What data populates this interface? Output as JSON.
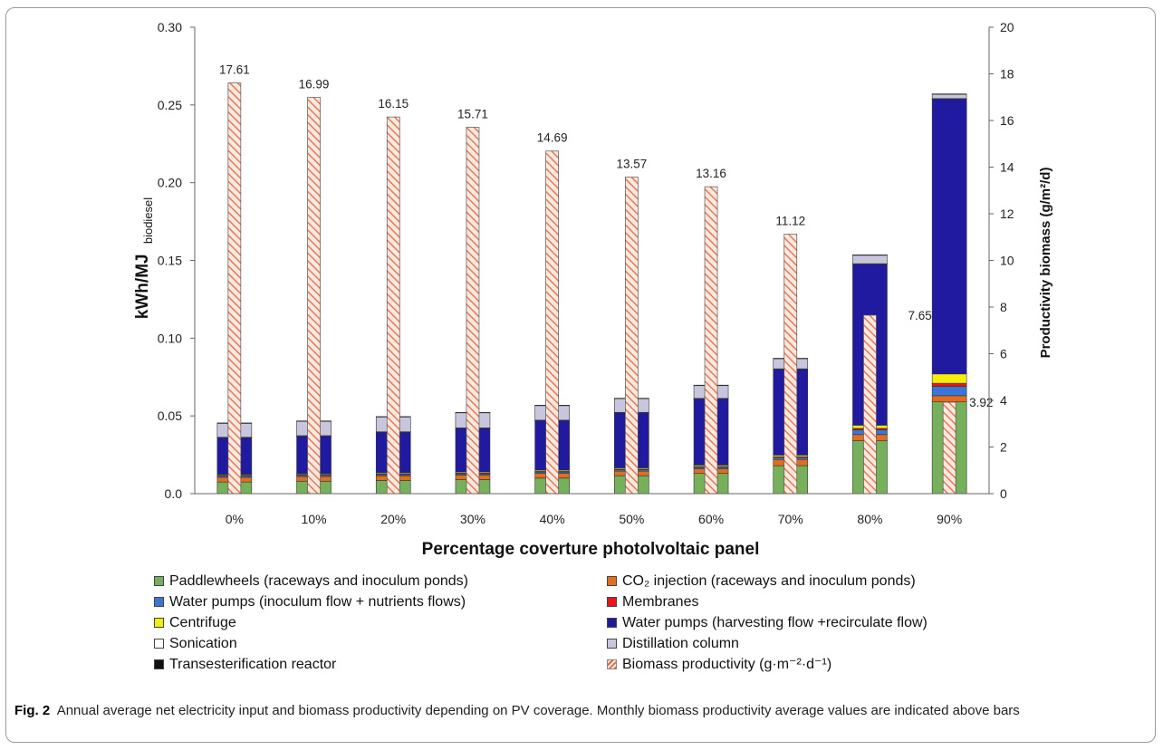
{
  "chart_data": {
    "type": "bar",
    "categories": [
      "0%",
      "10%",
      "20%",
      "30%",
      "40%",
      "50%",
      "60%",
      "70%",
      "80%",
      "90%"
    ],
    "stack_order": [
      "Paddlewheels (raceways and inoculum ponds)",
      "CO₂ injection (raceways and inoculum ponds)",
      "Water pumps (inoculum flow + nutrients flows)",
      "Membranes",
      "Centrifuge",
      "Water pumps (harvesting flow +recirculate flow)",
      "Sonication",
      "Distillation column",
      "Transesterification reactor"
    ],
    "series": [
      {
        "name": "Paddlewheels (raceways and inoculum ponds)",
        "color": "#77b05a",
        "axis": "left",
        "values": [
          0.0075,
          0.008,
          0.0085,
          0.009,
          0.01,
          0.0115,
          0.013,
          0.018,
          0.034,
          0.059
        ]
      },
      {
        "name": "CO₂ injection (raceways and inoculum ponds)",
        "color": "#e36c1f",
        "axis": "left",
        "values": [
          0.003,
          0.003,
          0.003,
          0.003,
          0.003,
          0.003,
          0.003,
          0.004,
          0.004,
          0.004
        ]
      },
      {
        "name": "Water pumps (inoculum flow + nutrients flows)",
        "color": "#3a76d8",
        "axis": "left",
        "values": [
          0.0008,
          0.0008,
          0.0008,
          0.0008,
          0.0009,
          0.0009,
          0.001,
          0.0012,
          0.003,
          0.006
        ]
      },
      {
        "name": "Membranes",
        "color": "#e8161b",
        "axis": "left",
        "values": [
          0.0004,
          0.0004,
          0.0004,
          0.0004,
          0.0004,
          0.0004,
          0.0005,
          0.0006,
          0.001,
          0.002
        ]
      },
      {
        "name": "Centrifuge",
        "color": "#f5ee0a",
        "axis": "left",
        "values": [
          0.0006,
          0.0006,
          0.0007,
          0.0007,
          0.0008,
          0.0008,
          0.0009,
          0.001,
          0.002,
          0.006
        ]
      },
      {
        "name": "Water pumps (harvesting flow +recirculate flow)",
        "color": "#1f1aa0",
        "axis": "left",
        "values": [
          0.0237,
          0.0242,
          0.0261,
          0.0281,
          0.0319,
          0.0354,
          0.0426,
          0.0552,
          0.1036,
          0.1768
        ]
      },
      {
        "name": "Sonication",
        "color": "#ffffff",
        "axis": "left",
        "values": [
          0.0003,
          0.0003,
          0.0003,
          0.0003,
          0.0003,
          0.0003,
          0.0003,
          0.0003,
          0.0003,
          0.0003
        ]
      },
      {
        "name": "Distillation column",
        "color": "#c7c6dc",
        "axis": "left",
        "values": [
          0.009,
          0.0093,
          0.0096,
          0.0098,
          0.0094,
          0.0089,
          0.0083,
          0.0066,
          0.0055,
          0.0028
        ]
      },
      {
        "name": "Transesterification reactor",
        "color": "#111111",
        "axis": "left",
        "values": [
          0.0002,
          0.0002,
          0.0002,
          0.0002,
          0.0002,
          0.0002,
          0.0002,
          0.0002,
          0.0002,
          0.0002
        ]
      },
      {
        "name": "Biomass productivity (g·m⁻²·d⁻¹)",
        "color": "#e8775a",
        "pattern": "diagonal-hatch",
        "axis": "right",
        "values": [
          17.61,
          16.99,
          16.15,
          15.71,
          14.69,
          13.57,
          13.16,
          11.12,
          7.65,
          3.92
        ]
      }
    ],
    "data_labels": [
      "17.61",
      "16.99",
      "16.15",
      "15.71",
      "14.69",
      "13.57",
      "13.16",
      "11.12",
      "7.65",
      "3.92"
    ],
    "ylim": [
      0,
      0.3
    ],
    "y_ticks": [
      "0.0",
      "0.05",
      "0.10",
      "0.15",
      "0.20",
      "0.25",
      "0.30"
    ],
    "y2lim": [
      0,
      20
    ],
    "y2_ticks": [
      "0",
      "2",
      "4",
      "6",
      "8",
      "10",
      "12",
      "14",
      "16",
      "18",
      "20"
    ],
    "xlabel": "Percentage coverture  photolvoltaic panel",
    "ylabel": "kWh/MJ",
    "ylabel_sub": "biodiesel",
    "y2label": "Productivity biomass (g/m²/d)",
    "grid": false,
    "legend_position": "bottom"
  },
  "legend": {
    "items": [
      {
        "label": "Paddlewheels (raceways and inoculum ponds)",
        "color": "#77b05a",
        "col": 0,
        "row": 0
      },
      {
        "label": "CO₂ injection (raceways and inoculum ponds)",
        "color": "#e36c1f",
        "col": 1,
        "row": 0
      },
      {
        "label": "Water pumps (inoculum flow + nutrients flows)",
        "color": "#3a76d8",
        "col": 0,
        "row": 1
      },
      {
        "label": "Membranes",
        "color": "#e8161b",
        "col": 1,
        "row": 1
      },
      {
        "label": "Centrifuge",
        "color": "#f5ee0a",
        "col": 0,
        "row": 2
      },
      {
        "label": "Water pumps (harvesting flow +recirculate flow)",
        "color": "#1f1aa0",
        "col": 1,
        "row": 2
      },
      {
        "label": "Sonication",
        "color": "#ffffff",
        "col": 0,
        "row": 3
      },
      {
        "label": "Distillation column",
        "color": "#c7c6dc",
        "col": 1,
        "row": 3
      },
      {
        "label": "Transesterification reactor",
        "color": "#111111",
        "col": 0,
        "row": 4
      },
      {
        "label": "Biomass productivity (g·m⁻²·d⁻¹)",
        "color": "#e8775a",
        "hatch": true,
        "col": 1,
        "row": 4
      }
    ]
  },
  "caption": {
    "label": "Fig. 2",
    "text": "Annual average net electricity input and biomass productivity depending on PV coverage. Monthly biomass productivity average values are indicated above bars"
  }
}
